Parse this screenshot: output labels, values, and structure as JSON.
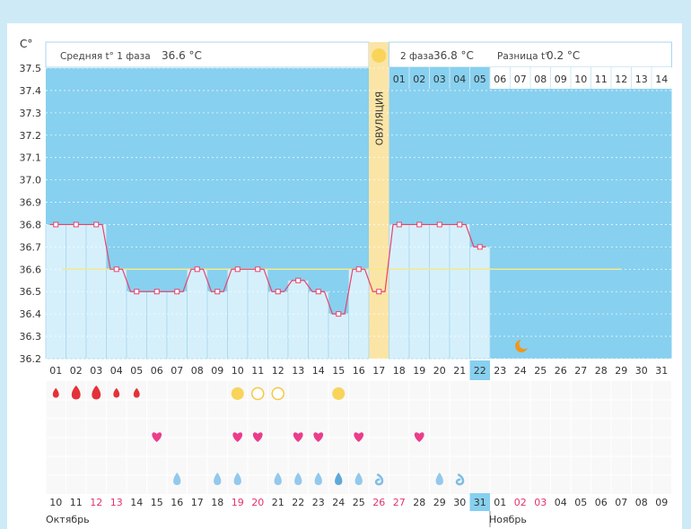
{
  "chart_data": {
    "type": "line",
    "y_unit": "C°",
    "ylim": [
      36.2,
      37.5
    ],
    "y_ticks": [
      "37.5",
      "37.4",
      "37.3",
      "37.2",
      "37.1",
      "37.0",
      "36.9",
      "36.8",
      "36.7",
      "36.6",
      "36.5",
      "36.4",
      "36.3",
      "36.2"
    ],
    "cycle_days": [
      "01",
      "02",
      "03",
      "04",
      "05",
      "06",
      "07",
      "08",
      "09",
      "10",
      "11",
      "12",
      "13",
      "14",
      "15",
      "16",
      "17",
      "18",
      "19",
      "20",
      "21",
      "22",
      "23",
      "24",
      "25",
      "26",
      "27",
      "28",
      "29",
      "30",
      "31"
    ],
    "temperatures": [
      36.8,
      36.8,
      36.8,
      36.6,
      36.5,
      36.5,
      36.5,
      36.6,
      36.5,
      36.6,
      36.6,
      36.5,
      36.55,
      36.5,
      36.4,
      36.6,
      36.5,
      36.8,
      36.8,
      36.8,
      36.8,
      36.7
    ],
    "current_day": "22",
    "ovulation_day": "17",
    "ovulation_label": "ОВУЛЯЦИЯ",
    "coverline": 36.6,
    "phase1": {
      "label": "Средняя t° 1 фаза",
      "value": "36.6 °C"
    },
    "phase2": {
      "label": "2 фаза",
      "value": "36.8 °C"
    },
    "difference": {
      "label": "Разница t°",
      "value": "0.2 °C"
    },
    "luteal_days": [
      "01",
      "02",
      "03",
      "04",
      "05",
      "06",
      "07",
      "08",
      "09",
      "10",
      "11",
      "12",
      "13",
      "14"
    ],
    "luteal_filled": 5,
    "calendar_dates": [
      "10",
      "11",
      "12",
      "13",
      "14",
      "15",
      "16",
      "17",
      "18",
      "19",
      "20",
      "21",
      "22",
      "23",
      "24",
      "25",
      "26",
      "27",
      "28",
      "29",
      "30",
      "31",
      "01",
      "02",
      "03",
      "04",
      "05",
      "06",
      "07",
      "08",
      "09"
    ],
    "weekend_dates": [
      3,
      4,
      10,
      11,
      17,
      18,
      24,
      25
    ],
    "month_labels": [
      {
        "text": "Октябрь",
        "day": 1
      },
      {
        "text": "Ноябрь",
        "day": 23
      }
    ],
    "markers": {
      "period": [
        {
          "day": 1,
          "size": "s"
        },
        {
          "day": 2,
          "size": "l"
        },
        {
          "day": 3,
          "size": "l"
        },
        {
          "day": 4,
          "size": "s"
        },
        {
          "day": 5,
          "size": "s"
        }
      ],
      "ovulation_test": [
        {
          "day": 10,
          "type": "filled"
        },
        {
          "day": 11,
          "type": "empty"
        },
        {
          "day": 12,
          "type": "empty"
        },
        {
          "day": 15,
          "type": "filled"
        }
      ],
      "intercourse": [
        6,
        10,
        11,
        13,
        14,
        16,
        19
      ],
      "discharge": [
        {
          "day": 7,
          "type": "drop"
        },
        {
          "day": 9,
          "type": "drop"
        },
        {
          "day": 10,
          "type": "drop"
        },
        {
          "day": 12,
          "type": "drop"
        },
        {
          "day": 13,
          "type": "drop"
        },
        {
          "day": 14,
          "type": "drop"
        },
        {
          "day": 15,
          "type": "drop-dark"
        },
        {
          "day": 16,
          "type": "drop"
        },
        {
          "day": 17,
          "type": "curl"
        },
        {
          "day": 20,
          "type": "drop"
        },
        {
          "day": 21,
          "type": "curl"
        }
      ]
    },
    "moon_day": 24
  }
}
